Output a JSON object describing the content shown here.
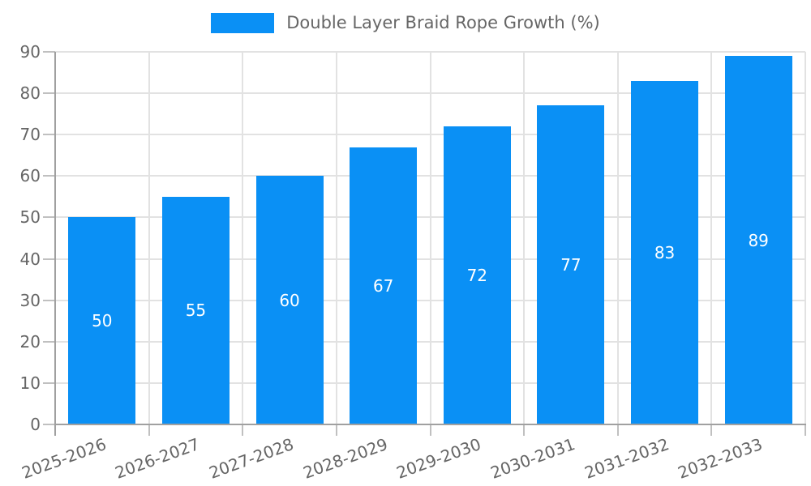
{
  "legend": {
    "position": "top",
    "swatch_color": "#0a90f5"
  },
  "chart_data": {
    "type": "bar",
    "title": "Double Layer Braid Rope Growth (%)",
    "series_name": "Double Layer Braid Rope Growth (%)",
    "categories": [
      "2025-2026",
      "2026-2027",
      "2027-2028",
      "2028-2029",
      "2029-2030",
      "2030-2031",
      "2031-2032",
      "2032-2033"
    ],
    "values": [
      50,
      55,
      60,
      67,
      72,
      77,
      83,
      89
    ],
    "value_labels_shown": true,
    "xlabel": "",
    "ylabel": "",
    "ylim": [
      0,
      90
    ],
    "yticks": [
      0,
      10,
      20,
      30,
      40,
      50,
      60,
      70,
      80,
      90
    ],
    "grid": true,
    "legend_position": "top",
    "x_label_rotation_deg": -20
  },
  "colors": {
    "bar": "#0a90f5",
    "grid": "#e2e2e2",
    "tick": "#c0c0c0",
    "axis": "#a0a0a0",
    "text": "#666666",
    "value_label": "#ffffff",
    "background": "#ffffff"
  }
}
